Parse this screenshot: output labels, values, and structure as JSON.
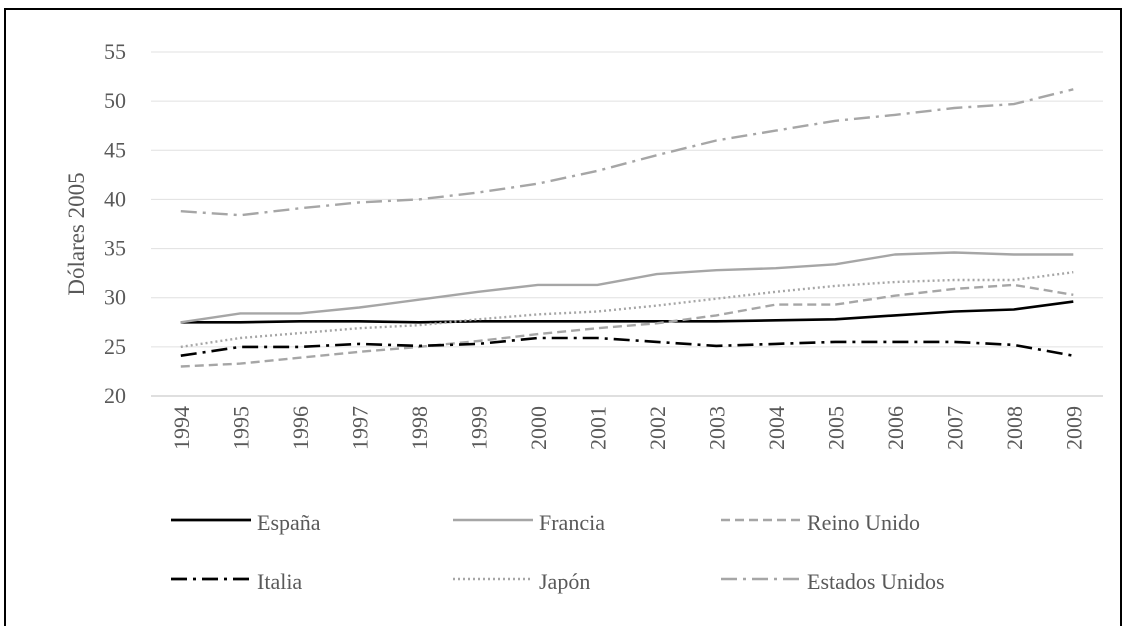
{
  "chart_data": {
    "type": "line",
    "title": "",
    "xlabel": "",
    "ylabel": "Dólares 2005",
    "ylim": [
      20,
      55
    ],
    "yticks": [
      20,
      25,
      30,
      35,
      40,
      45,
      50,
      55
    ],
    "grid": true,
    "legend_position": "bottom",
    "x": [
      "1994",
      "1995",
      "1996",
      "1997",
      "1998",
      "1999",
      "2000",
      "2001",
      "2002",
      "2003",
      "2004",
      "2005",
      "2006",
      "2007",
      "2008",
      "2009"
    ],
    "series": [
      {
        "name": "España",
        "color": "#000000",
        "dash": "solid",
        "values": [
          27.5,
          27.5,
          27.6,
          27.6,
          27.5,
          27.6,
          27.6,
          27.6,
          27.6,
          27.6,
          27.7,
          27.8,
          28.2,
          28.6,
          28.8,
          29.6
        ]
      },
      {
        "name": "Francia",
        "color": "#a6a6a6",
        "dash": "solid",
        "values": [
          27.5,
          28.4,
          28.4,
          29.0,
          29.8,
          30.6,
          31.3,
          31.3,
          32.4,
          32.8,
          33.0,
          33.4,
          34.4,
          34.6,
          34.4,
          34.4
        ]
      },
      {
        "name": "Reino Unido",
        "color": "#a6a6a6",
        "dash": "dash",
        "values": [
          23.0,
          23.3,
          23.9,
          24.5,
          25.0,
          25.6,
          26.3,
          26.9,
          27.4,
          28.2,
          29.3,
          29.3,
          30.2,
          30.9,
          31.3,
          30.3
        ]
      },
      {
        "name": "Italia",
        "color": "#000000",
        "dash": "dashdot",
        "values": [
          24.1,
          25.0,
          25.0,
          25.3,
          25.1,
          25.3,
          25.9,
          25.9,
          25.5,
          25.1,
          25.3,
          25.5,
          25.5,
          25.5,
          25.2,
          24.1
        ]
      },
      {
        "name": "Japón",
        "color": "#a6a6a6",
        "dash": "dot",
        "values": [
          25.0,
          25.9,
          26.4,
          26.9,
          27.2,
          27.8,
          28.3,
          28.6,
          29.2,
          29.9,
          30.6,
          31.2,
          31.6,
          31.8,
          31.8,
          32.6
        ]
      },
      {
        "name": "Estados Unidos",
        "color": "#a6a6a6",
        "dash": "dashdot",
        "values": [
          38.8,
          38.4,
          39.1,
          39.7,
          40.0,
          40.7,
          41.6,
          42.9,
          44.5,
          46.0,
          47.0,
          48.0,
          48.6,
          49.3,
          49.7,
          51.2
        ]
      }
    ]
  }
}
